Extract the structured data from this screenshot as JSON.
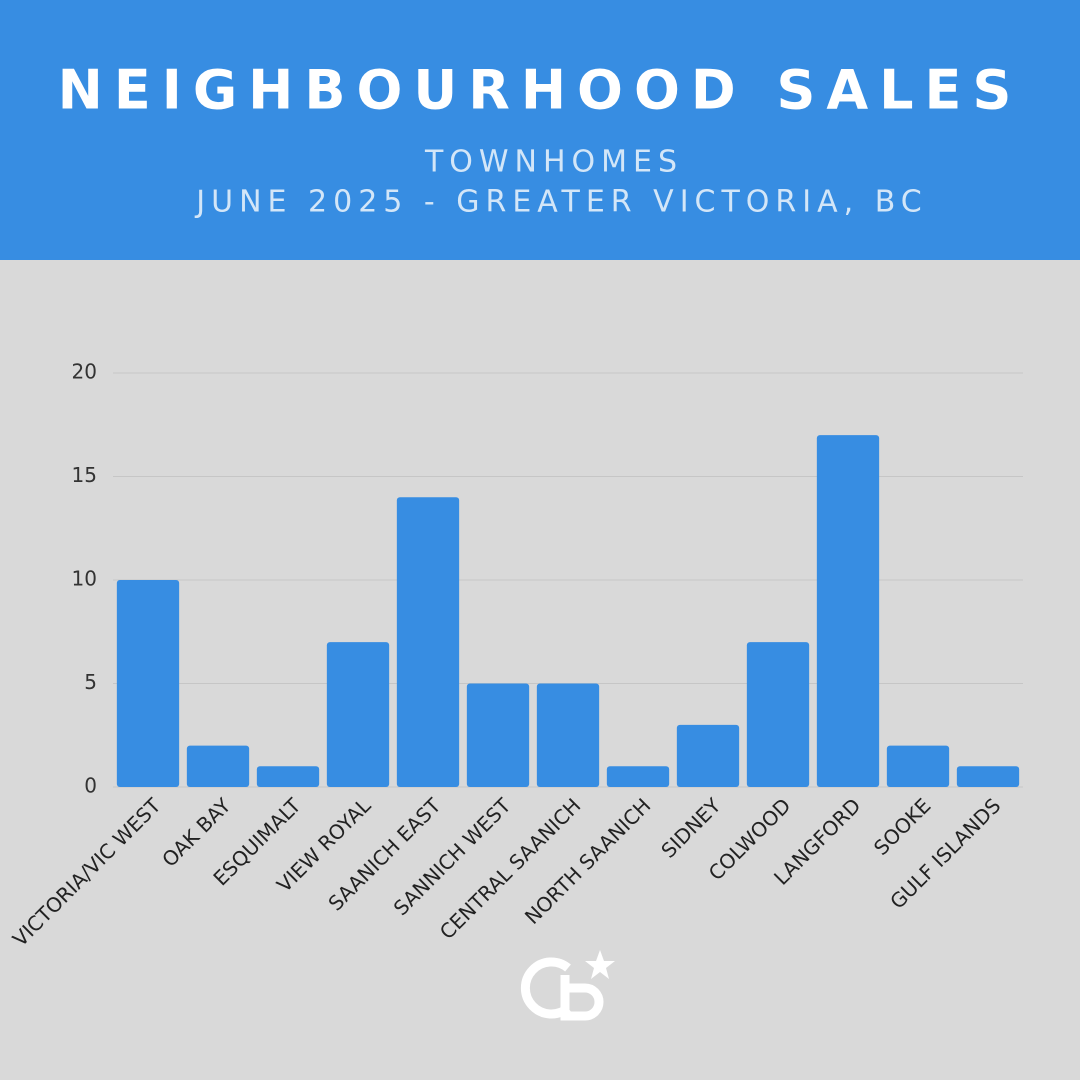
{
  "chart_data": {
    "type": "bar",
    "title": "NEIGHBOURHOOD SALES",
    "subtitle": [
      "TOWNHOMES",
      "JUNE 2025 - GREATER VICTORIA, BC"
    ],
    "categories": [
      "VICTORIA/VIC WEST",
      "OAK BAY",
      "ESQUIMALT",
      "VIEW ROYAL",
      "SAANICH EAST",
      "SANNICH WEST",
      "CENTRAL SAANICH",
      "NORTH SAANICH",
      "SIDNEY",
      "COLWOOD",
      "LANGFORD",
      "SOOKE",
      "GULF ISLANDS"
    ],
    "values": [
      10,
      2,
      1,
      7,
      14,
      5,
      5,
      1,
      3,
      7,
      17,
      2,
      1
    ],
    "color": "#378de2",
    "ylim": [
      0,
      20
    ],
    "yticks": [
      0,
      5,
      10,
      15,
      20
    ],
    "grid": true
  }
}
